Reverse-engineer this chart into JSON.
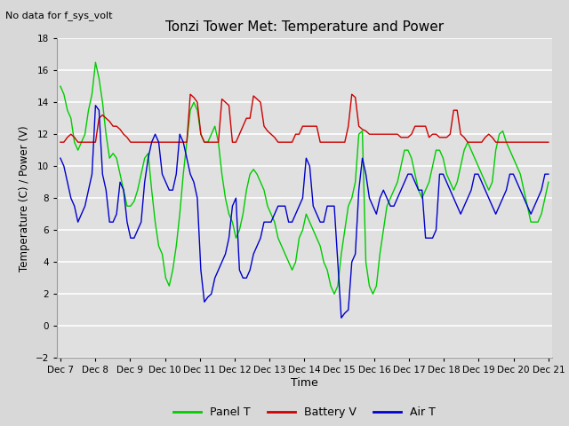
{
  "title": "Tonzi Tower Met: Temperature and Power",
  "subtitle": "No data for f_sys_volt",
  "ylabel": "Temperature (C) / Power (V)",
  "xlabel": "Time",
  "ylim": [
    -2,
    18
  ],
  "yticks": [
    -2,
    0,
    2,
    4,
    6,
    8,
    10,
    12,
    14,
    16,
    18
  ],
  "x_labels": [
    "Dec 7",
    "Dec 8",
    "Dec 9",
    "Dec 10",
    "Dec 11",
    "Dec 12",
    "Dec 13",
    "Dec 14",
    "Dec 15",
    "Dec 16",
    "Dec 17",
    "Dec 18",
    "Dec 19",
    "Dec 20",
    "Dec 21"
  ],
  "legend": [
    "Panel T",
    "Battery V",
    "Air T"
  ],
  "colors": {
    "panel": "#00cc00",
    "battery": "#cc0000",
    "air": "#0000cc"
  },
  "panel_t": [
    15.0,
    14.5,
    13.5,
    13.0,
    11.5,
    11.0,
    11.5,
    12.0,
    13.5,
    14.5,
    16.5,
    15.5,
    14.0,
    12.0,
    10.5,
    10.8,
    10.5,
    9.5,
    8.5,
    7.5,
    7.5,
    7.8,
    8.5,
    9.5,
    10.5,
    10.8,
    8.5,
    6.5,
    5.0,
    4.5,
    3.0,
    2.5,
    3.5,
    5.0,
    7.0,
    9.5,
    11.5,
    13.5,
    14.0,
    13.5,
    12.0,
    11.5,
    11.5,
    12.0,
    12.5,
    11.5,
    9.5,
    8.0,
    7.0,
    6.5,
    5.5,
    6.0,
    7.0,
    8.5,
    9.5,
    9.8,
    9.5,
    9.0,
    8.5,
    7.5,
    7.0,
    6.5,
    5.5,
    5.0,
    4.5,
    4.0,
    3.5,
    4.0,
    5.5,
    6.0,
    7.0,
    6.5,
    6.0,
    5.5,
    5.0,
    4.0,
    3.5,
    2.5,
    2.0,
    2.5,
    4.5,
    6.0,
    7.5,
    8.0,
    9.0,
    12.0,
    12.2,
    4.0,
    2.5,
    2.0,
    2.5,
    4.5,
    6.0,
    7.5,
    8.0,
    8.5,
    9.0,
    10.0,
    11.0,
    11.0,
    10.5,
    9.5,
    8.5,
    8.0,
    8.5,
    9.0,
    10.0,
    11.0,
    11.0,
    10.5,
    9.5,
    9.0,
    8.5,
    9.0,
    10.0,
    11.0,
    11.5,
    11.0,
    10.5,
    10.0,
    9.5,
    9.0,
    8.5,
    9.0,
    11.0,
    12.0,
    12.2,
    11.5,
    11.0,
    10.5,
    10.0,
    9.5,
    8.5,
    7.5,
    6.5,
    6.5,
    6.5,
    7.0,
    8.0,
    9.0
  ],
  "battery_v": [
    11.5,
    11.5,
    11.8,
    12.0,
    11.8,
    11.5,
    11.5,
    11.5,
    11.5,
    11.5,
    11.5,
    13.0,
    13.2,
    13.0,
    12.8,
    12.5,
    12.5,
    12.3,
    12.0,
    11.8,
    11.5,
    11.5,
    11.5,
    11.5,
    11.5,
    11.5,
    11.5,
    11.5,
    11.5,
    11.5,
    11.5,
    11.5,
    11.5,
    11.5,
    11.5,
    11.5,
    11.5,
    14.5,
    14.3,
    14.0,
    12.0,
    11.5,
    11.5,
    11.5,
    11.5,
    11.5,
    14.2,
    14.0,
    13.8,
    11.5,
    11.5,
    12.0,
    12.5,
    13.0,
    13.0,
    14.4,
    14.2,
    14.0,
    12.5,
    12.2,
    12.0,
    11.8,
    11.5,
    11.5,
    11.5,
    11.5,
    11.5,
    12.0,
    12.0,
    12.5,
    12.5,
    12.5,
    12.5,
    12.5,
    11.5,
    11.5,
    11.5,
    11.5,
    11.5,
    11.5,
    11.5,
    11.5,
    12.5,
    14.5,
    14.3,
    12.5,
    12.3,
    12.2,
    12.0,
    12.0,
    12.0,
    12.0,
    12.0,
    12.0,
    12.0,
    12.0,
    12.0,
    11.8,
    11.8,
    11.8,
    12.0,
    12.5,
    12.5,
    12.5,
    12.5,
    11.8,
    12.0,
    12.0,
    11.8,
    11.8,
    11.8,
    12.0,
    13.5,
    13.5,
    12.0,
    11.8,
    11.5,
    11.5,
    11.5,
    11.5,
    11.5,
    11.8,
    12.0,
    11.8,
    11.5,
    11.5,
    11.5,
    11.5,
    11.5,
    11.5,
    11.5,
    11.5,
    11.5,
    11.5,
    11.5,
    11.5,
    11.5,
    11.5,
    11.5,
    11.5
  ],
  "air_t": [
    10.5,
    10.0,
    9.0,
    8.0,
    7.5,
    6.5,
    7.0,
    7.5,
    8.5,
    9.5,
    13.8,
    13.5,
    9.5,
    8.5,
    6.5,
    6.5,
    7.0,
    9.0,
    8.5,
    6.5,
    5.5,
    5.5,
    6.0,
    6.5,
    9.0,
    10.5,
    11.5,
    12.0,
    11.5,
    9.5,
    9.0,
    8.5,
    8.5,
    9.5,
    12.0,
    11.5,
    10.5,
    9.5,
    9.0,
    8.0,
    3.5,
    1.5,
    1.8,
    2.0,
    3.0,
    3.5,
    4.0,
    4.5,
    5.5,
    7.5,
    8.0,
    3.5,
    3.0,
    3.0,
    3.5,
    4.5,
    5.0,
    5.5,
    6.5,
    6.5,
    6.5,
    7.0,
    7.5,
    7.5,
    7.5,
    6.5,
    6.5,
    7.0,
    7.5,
    8.0,
    10.5,
    10.0,
    7.5,
    7.0,
    6.5,
    6.5,
    7.5,
    7.5,
    7.5,
    4.0,
    0.5,
    0.8,
    1.0,
    4.0,
    4.5,
    8.5,
    10.5,
    9.5,
    8.0,
    7.5,
    7.0,
    8.0,
    8.5,
    8.0,
    7.5,
    7.5,
    8.0,
    8.5,
    9.0,
    9.5,
    9.5,
    9.0,
    8.5,
    8.5,
    5.5,
    5.5,
    5.5,
    6.0,
    9.5,
    9.5,
    9.0,
    8.5,
    8.0,
    7.5,
    7.0,
    7.5,
    8.0,
    8.5,
    9.5,
    9.5,
    9.0,
    8.5,
    8.0,
    7.5,
    7.0,
    7.5,
    8.0,
    8.5,
    9.5,
    9.5,
    9.0,
    8.5,
    8.0,
    7.5,
    7.0,
    7.5,
    8.0,
    8.5,
    9.5,
    9.5
  ]
}
